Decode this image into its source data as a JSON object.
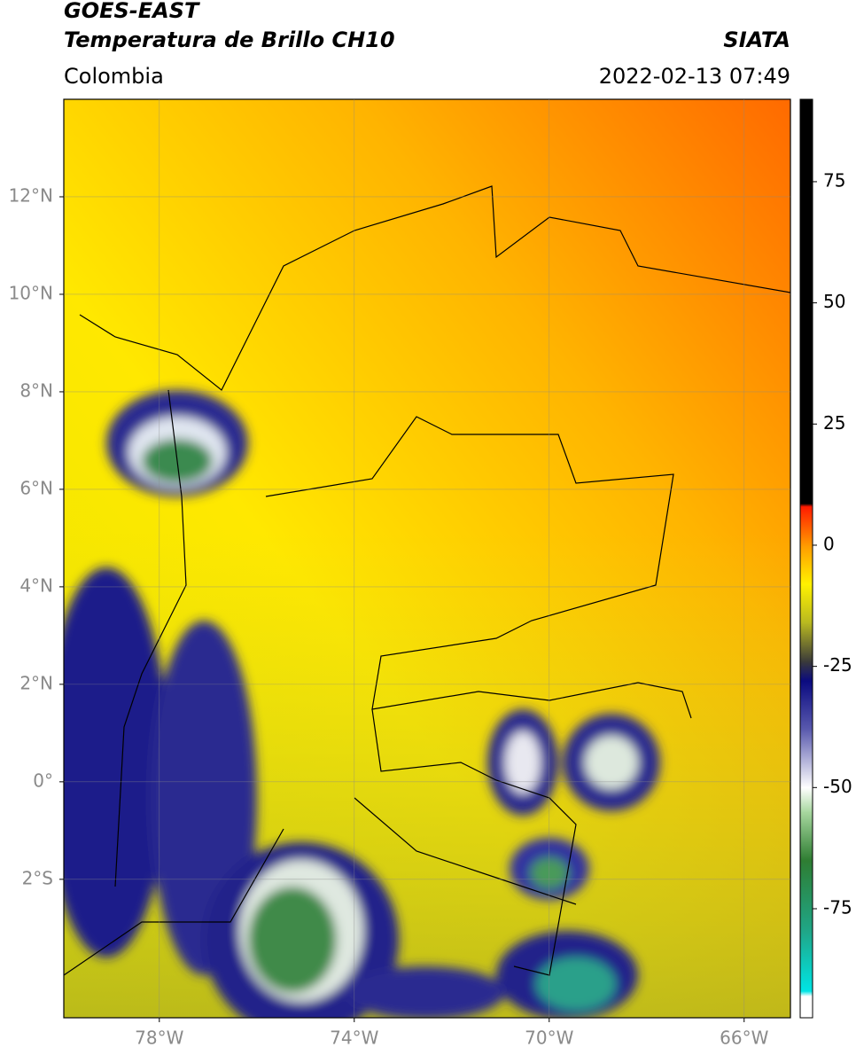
{
  "header": {
    "satellite": "GOES-EAST",
    "product": "Temperatura de Brillo CH10",
    "source": "SIATA",
    "region": "Colombia",
    "datetime": "2022-02-13 07:49"
  },
  "map": {
    "xlim": [
      -79.96,
      -65.05
    ],
    "ylim": [
      -4.84,
      14
    ],
    "xticks": [
      {
        "value": -78,
        "label": "78°W"
      },
      {
        "value": -74,
        "label": "74°W"
      },
      {
        "value": -70,
        "label": "70°W"
      },
      {
        "value": -66,
        "label": "66°W"
      }
    ],
    "yticks": [
      {
        "value": 12,
        "label": "12°N"
      },
      {
        "value": 10,
        "label": "10°N"
      },
      {
        "value": 8,
        "label": "8°N"
      },
      {
        "value": 6,
        "label": "6°N"
      },
      {
        "value": 4,
        "label": "4°N"
      },
      {
        "value": 2,
        "label": "2°N"
      },
      {
        "value": 0,
        "label": "0°"
      },
      {
        "value": -2,
        "label": "2°S"
      }
    ]
  },
  "colorbar": {
    "lim": [
      -97.5,
      92
    ],
    "ticks": [
      75,
      50,
      25,
      0,
      -25,
      -50,
      -75
    ],
    "stops": [
      {
        "value": -97.5,
        "color": "#ffffff"
      },
      {
        "value": -93,
        "color": "#ffffff"
      },
      {
        "value": -92,
        "color": "#00e5e5"
      },
      {
        "value": -80,
        "color": "#1fa88a"
      },
      {
        "value": -65,
        "color": "#2e7d32"
      },
      {
        "value": -55,
        "color": "#a8d8a0"
      },
      {
        "value": -50,
        "color": "#ffffff"
      },
      {
        "value": -38,
        "color": "#5a5aae"
      },
      {
        "value": -28,
        "color": "#0a0a80"
      },
      {
        "value": -24,
        "color": "#3a3a3a"
      },
      {
        "value": -16,
        "color": "#b8b820"
      },
      {
        "value": -8,
        "color": "#fff200"
      },
      {
        "value": 0,
        "color": "#ff9a00"
      },
      {
        "value": 8,
        "color": "#ff1a00"
      },
      {
        "value": 8.6,
        "color": "#000000"
      },
      {
        "value": 92,
        "color": "#000000"
      }
    ]
  }
}
